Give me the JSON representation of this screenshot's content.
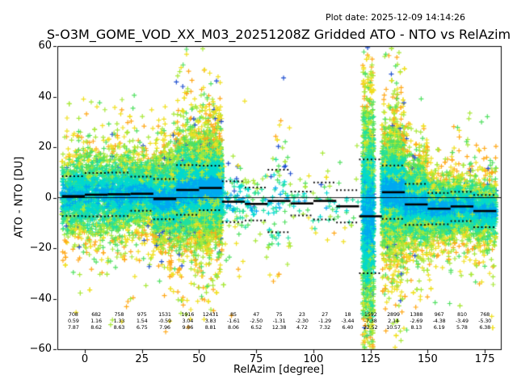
{
  "header": {
    "title": "S-O3M_GOME_VOD_XX_M03_20251208Z Gridded ATO - NTO vs RelAzim",
    "plot_date": "Plot date: 2025-12-09 14:14:26"
  },
  "axes": {
    "xlabel": "RelAzim [degree]",
    "ylabel": "ATO - NTO [DU]",
    "xlim": [
      -12,
      182
    ],
    "ylim": [
      -60,
      60
    ],
    "xticks": [
      0,
      25,
      50,
      75,
      100,
      125,
      150,
      175
    ],
    "yticks": [
      -60,
      -40,
      -20,
      0,
      20,
      40,
      60
    ]
  },
  "chart_data": {
    "type": "scatter",
    "title": "S-O3M_GOME_VOD_XX_M03_20251208Z Gridded ATO - NTO vs RelAzim",
    "xlabel": "RelAzim [degree]",
    "ylabel": "ATO - NTO [DU]",
    "xlim": [
      -12,
      182
    ],
    "ylim": [
      -60,
      60
    ],
    "grid": false,
    "legend": "none",
    "marker": "+",
    "zero_line": true,
    "x_bin_width": 10,
    "overlays": {
      "solid_segments": "per-bin mean",
      "dotted_segments": "per-bin mean plus/minus std"
    },
    "palette": [
      "#2050d0",
      "#00a8f0",
      "#00d8d0",
      "#20e0a0",
      "#50e060",
      "#a8e838",
      "#f0e020",
      "#ffa818"
    ],
    "bins": [
      {
        "center": -5,
        "count": 708,
        "mean": 0.59,
        "std": 7.87
      },
      {
        "center": 5,
        "count": 682,
        "mean": 1.16,
        "std": 8.62
      },
      {
        "center": 15,
        "count": 758,
        "mean": 1.33,
        "std": 8.63
      },
      {
        "center": 25,
        "count": 975,
        "mean": 1.54,
        "std": 6.75
      },
      {
        "center": 35,
        "count": 1531,
        "mean": -0.59,
        "std": 7.96
      },
      {
        "center": 45,
        "count": 1916,
        "mean": 3.04,
        "std": 9.86
      },
      {
        "center": 55,
        "count": 12431,
        "mean": 3.83,
        "std": 8.81
      },
      {
        "center": 65,
        "count": 85,
        "mean": -1.61,
        "std": 8.06
      },
      {
        "center": 75,
        "count": 47,
        "mean": -2.5,
        "std": 6.52
      },
      {
        "center": 85,
        "count": 75,
        "mean": -1.31,
        "std": 12.38
      },
      {
        "center": 95,
        "count": 23,
        "mean": -2.3,
        "std": 4.72
      },
      {
        "center": 105,
        "count": 27,
        "mean": -1.29,
        "std": 7.32
      },
      {
        "center": 115,
        "count": 18,
        "mean": -3.44,
        "std": 6.4
      },
      {
        "center": 125,
        "count": 1592,
        "mean": -7.38,
        "std": 22.52
      },
      {
        "center": 135,
        "count": 2899,
        "mean": 2.14,
        "std": 10.57
      },
      {
        "center": 145,
        "count": 1388,
        "mean": -2.69,
        "std": 8.13
      },
      {
        "center": 155,
        "count": 967,
        "mean": -4.38,
        "std": 6.19
      },
      {
        "center": 165,
        "count": 810,
        "mean": -3.49,
        "std": 5.78
      },
      {
        "center": 175,
        "count": 768,
        "mean": -5.3,
        "std": 6.38
      }
    ],
    "x_concentration_overrides": {
      "125": [
        121.5,
        126.5
      ]
    }
  }
}
